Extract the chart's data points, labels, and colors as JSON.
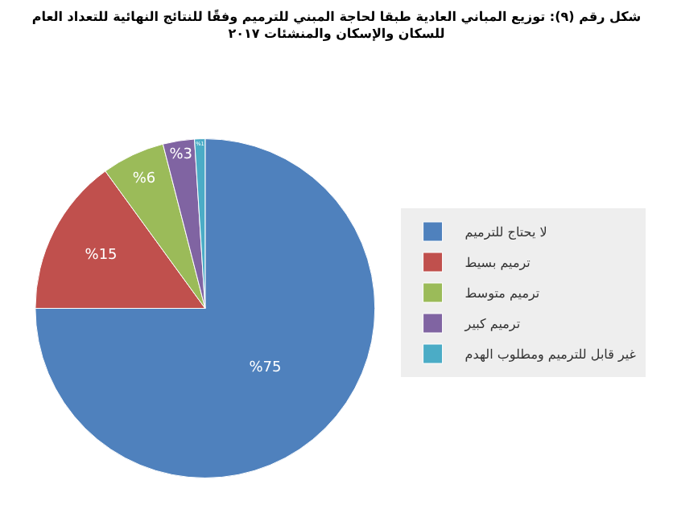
{
  "chart_data": {
    "type": "pie",
    "title": "شكل رقم (٩): توزيع المباني العادية طبقا لحاجة المبني للترميم وفقًا للنتائج النهائية للتعداد العام\nللسكان والإسكان والمنشئات ٢٠١٧",
    "categories": [
      "لا يحتاج للترميم",
      "ترميم بسيط",
      "ترميم متوسط",
      "ترميم كبير",
      "غير قابل للترميم ومطلوب الهدم"
    ],
    "values": [
      75,
      15,
      6,
      3,
      1
    ],
    "colors": [
      "#4f81bd",
      "#c0504d",
      "#9bbb59",
      "#8064a2",
      "#4bacc6"
    ],
    "value_labels": [
      "%75",
      "%15",
      "%6",
      "%3",
      "%1"
    ],
    "legend": "right"
  }
}
